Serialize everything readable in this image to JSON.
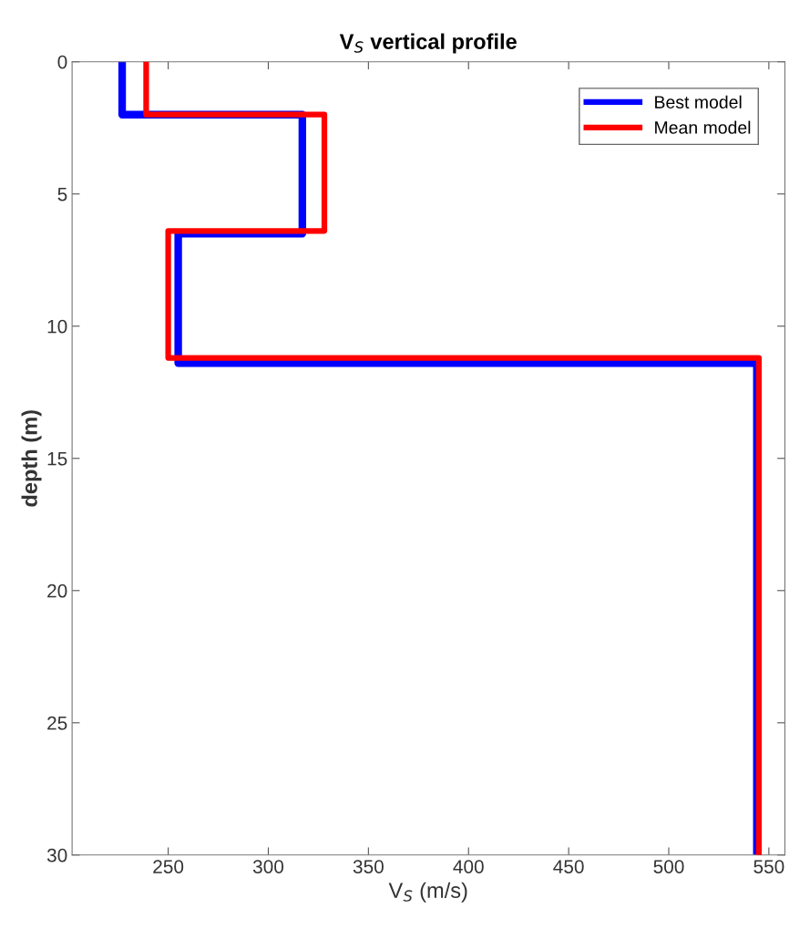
{
  "chart_data": {
    "type": "line",
    "title": "V$_{S}$ vertical profile",
    "xlabel": "V$_{S}$ (m/s)",
    "ylabel": "depth (m)",
    "xlim": [
      202,
      558
    ],
    "xticks": [
      250,
      300,
      350,
      400,
      450,
      500,
      550
    ],
    "ylim": [
      30,
      0
    ],
    "yticks": [
      0,
      5,
      10,
      15,
      20,
      25,
      30
    ],
    "grid": false,
    "legend": "top right",
    "marker": "none",
    "line_style": "solid",
    "series": [
      {
        "name": "Best model",
        "color": "#0000ff",
        "x": [
          227,
          227,
          317,
          317,
          255,
          255,
          544,
          544
        ],
        "values": [
          0,
          2,
          2,
          6.5,
          6.5,
          11.4,
          11.4,
          30
        ]
      },
      {
        "name": "Mean model",
        "color": "#ff0000",
        "x": [
          239,
          239,
          328,
          328,
          250,
          250,
          545,
          545
        ],
        "values": [
          0,
          2,
          2,
          6.4,
          6.4,
          11.2,
          11.2,
          30
        ]
      }
    ]
  }
}
